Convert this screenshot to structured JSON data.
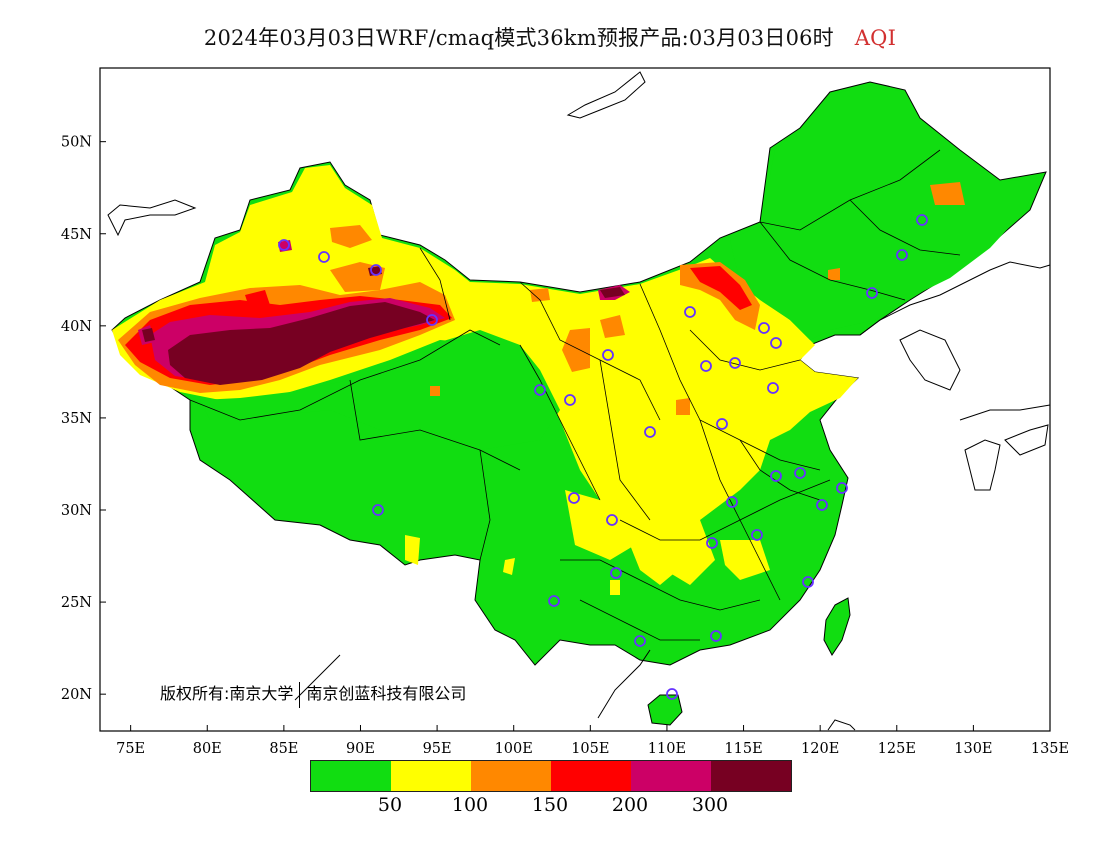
{
  "title": {
    "text": "2024年03月03日WRF/cmaq模式36km预报产品:03月03日06时",
    "variable": "AQI"
  },
  "axes": {
    "lon_ticks": [
      "75E",
      "80E",
      "85E",
      "90E",
      "95E",
      "100E",
      "105E",
      "110E",
      "115E",
      "120E",
      "125E",
      "130E",
      "135E"
    ],
    "lat_ticks": [
      "50N",
      "45N",
      "40N",
      "35N",
      "30N",
      "25N",
      "20N"
    ],
    "lon_range": [
      73,
      135
    ],
    "lat_range": [
      18,
      54
    ]
  },
  "copyright": {
    "owner": "版权所有:南京大学",
    "company": "南京创蓝科技有限公司"
  },
  "legend": {
    "colors": [
      "#11dd11",
      "#ffff00",
      "#ff8800",
      "#ff0000",
      "#cc0066",
      "#770022"
    ],
    "labels": [
      "50",
      "100",
      "150",
      "200",
      "300"
    ]
  }
}
